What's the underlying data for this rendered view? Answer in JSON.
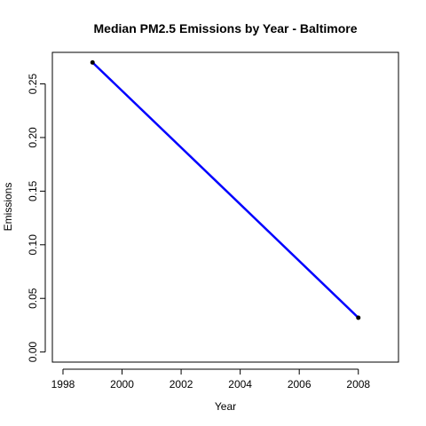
{
  "chart_data": {
    "type": "line",
    "title": "Median PM2.5 Emissions by Year - Baltimore",
    "xlabel": "Year",
    "ylabel": "Emissions",
    "xlim": [
      1997.64,
      2009.36
    ],
    "ylim": [
      -0.0094,
      0.2794
    ],
    "x_ticks": [
      1998,
      2000,
      2002,
      2004,
      2006,
      2008
    ],
    "y_ticks": [
      0.0,
      0.05,
      0.1,
      0.15,
      0.2,
      0.25
    ],
    "y_tick_labels": [
      "0.00",
      "0.05",
      "0.10",
      "0.15",
      "0.20",
      "0.25"
    ],
    "grid": false,
    "legend": "none",
    "series": [
      {
        "x": [
          1999,
          2008
        ],
        "y": [
          0.27,
          0.032
        ],
        "line_color": "#0000ff",
        "point_color": "#000000"
      }
    ]
  }
}
